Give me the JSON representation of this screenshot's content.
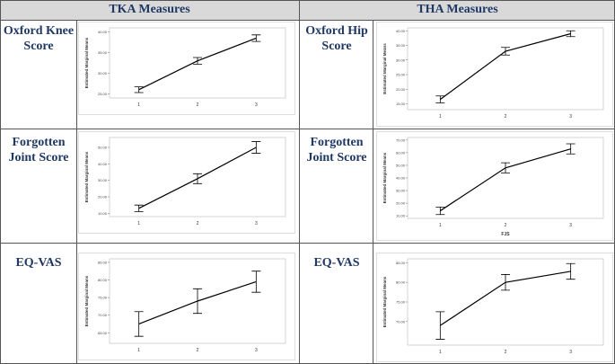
{
  "table": {
    "headers": [
      "TKA Measures",
      "THA Measures"
    ],
    "rows": [
      [
        "Oxford Knee Score",
        "Oxford Hip Score"
      ],
      [
        "Forgotten Joint Score",
        "Forgotten Joint Score"
      ],
      [
        "EQ-VAS",
        "EQ-VAS"
      ]
    ]
  },
  "chart_data": [
    {
      "type": "line",
      "ylabel": "Estimated Marginal Means",
      "categories": [
        "1",
        "2",
        "3"
      ],
      "values": [
        26,
        33,
        38.5
      ],
      "errors": [
        0.7,
        0.8,
        0.8
      ],
      "color": "#000000",
      "ylim": [
        24,
        41
      ],
      "yticks": [
        {
          "value": 25,
          "label": "25.00"
        },
        {
          "value": 30,
          "label": "30.00"
        },
        {
          "value": 35,
          "label": "35.00"
        },
        {
          "value": 40,
          "label": "40.00"
        }
      ]
    },
    {
      "type": "line",
      "ylabel": "Estimated Marginal Means",
      "categories": [
        "1",
        "2",
        "3"
      ],
      "values": [
        16.5,
        33,
        39
      ],
      "errors": [
        1.2,
        1.3,
        1.0
      ],
      "color": "#000000",
      "ylim": [
        13,
        41
      ],
      "yticks": [
        {
          "value": 15,
          "label": "15.00"
        },
        {
          "value": 20,
          "label": "20.00"
        },
        {
          "value": 25,
          "label": "25.00"
        },
        {
          "value": 30,
          "label": "30.00"
        },
        {
          "value": 35,
          "label": "35.00"
        },
        {
          "value": 40,
          "label": "40.00"
        }
      ]
    },
    {
      "type": "line",
      "ylabel": "Estimated Marginal Means",
      "categories": [
        "1",
        "2",
        "3"
      ],
      "values": [
        13,
        31,
        50
      ],
      "errors": [
        2,
        3,
        3.5
      ],
      "color": "#000000",
      "ylim": [
        8,
        56
      ],
      "yticks": [
        {
          "value": 10,
          "label": "10.00"
        },
        {
          "value": 20,
          "label": "20.00"
        },
        {
          "value": 30,
          "label": "30.00"
        },
        {
          "value": 40,
          "label": "40.00"
        },
        {
          "value": 50,
          "label": "50.00"
        }
      ]
    },
    {
      "type": "line",
      "ylabel": "Estimated Marginal Means",
      "xlabel": "FJS",
      "categories": [
        "1",
        "2",
        "3"
      ],
      "values": [
        14,
        48,
        63
      ],
      "errors": [
        3,
        4,
        4
      ],
      "color": "#000000",
      "ylim": [
        8,
        72
      ],
      "yticks": [
        {
          "value": 10,
          "label": "10.00"
        },
        {
          "value": 20,
          "label": "20.00"
        },
        {
          "value": 30,
          "label": "30.00"
        },
        {
          "value": 40,
          "label": "40.00"
        },
        {
          "value": 50,
          "label": "50.00"
        },
        {
          "value": 60,
          "label": "60.00"
        },
        {
          "value": 70,
          "label": "70.00"
        }
      ]
    },
    {
      "type": "line",
      "ylabel": "Estimated Marginal Means",
      "categories": [
        "1",
        "2",
        "3"
      ],
      "values": [
        67.5,
        74,
        79.5
      ],
      "errors": [
        3.5,
        3.5,
        3
      ],
      "color": "#000000",
      "ylim": [
        62,
        86
      ],
      "yticks": [
        {
          "value": 65,
          "label": "65.00"
        },
        {
          "value": 70,
          "label": "70.00"
        },
        {
          "value": 75,
          "label": "75.00"
        },
        {
          "value": 80,
          "label": "80.00"
        },
        {
          "value": 85,
          "label": "85.00"
        }
      ]
    },
    {
      "type": "line",
      "ylabel": "Estimated Marginal Means",
      "categories": [
        "1",
        "2",
        "3"
      ],
      "values": [
        69,
        80,
        82.8
      ],
      "errors": [
        3.5,
        2,
        2
      ],
      "color": "#000000",
      "ylim": [
        64,
        86
      ],
      "yticks": [
        {
          "value": 70,
          "label": "70.00"
        },
        {
          "value": 75,
          "label": "75.00"
        },
        {
          "value": 80,
          "label": "80.00"
        },
        {
          "value": 85,
          "label": "85.00"
        }
      ]
    }
  ]
}
